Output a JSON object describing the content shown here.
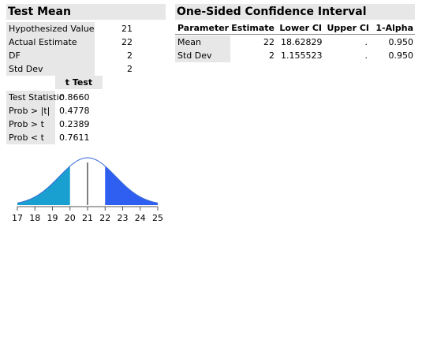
{
  "test_mean": {
    "title": "Test Mean",
    "rows": [
      {
        "label": "Hypothesized Value",
        "value": "21"
      },
      {
        "label": "Actual Estimate",
        "value": "22"
      },
      {
        "label": "DF",
        "value": "2"
      },
      {
        "label": "Std Dev",
        "value": "2"
      }
    ]
  },
  "t_test": {
    "header": "t Test",
    "rows": [
      {
        "label": "Test Statistic",
        "value": "0.8660"
      },
      {
        "label": "Prob > |t|",
        "value": "0.4778"
      },
      {
        "label": "Prob > t",
        "value": "0.2389"
      },
      {
        "label": "Prob < t",
        "value": "0.7611"
      }
    ]
  },
  "confidence_interval": {
    "title": "One-Sided Confidence Interval",
    "columns": [
      "Parameter",
      "Estimate",
      "Lower CI",
      "Upper CI",
      "1-Alpha"
    ],
    "rows": [
      {
        "parameter": "Mean",
        "estimate": "22",
        "lower_ci": "18.62829",
        "upper_ci": ".",
        "alpha": "0.950"
      },
      {
        "parameter": "Std Dev",
        "estimate": "2",
        "lower_ci": "1.155523",
        "upper_ci": ".",
        "alpha": "0.950"
      }
    ]
  },
  "distribution_plot": {
    "axis_ticks": [
      "17",
      "18",
      "19",
      "20",
      "21",
      "22",
      "23",
      "24",
      "25"
    ],
    "colors": {
      "curve": "#3a6ad6",
      "left_tail": "#1aa0d0",
      "right_tail": "#2f5ff0",
      "axis": "#555555"
    }
  }
}
